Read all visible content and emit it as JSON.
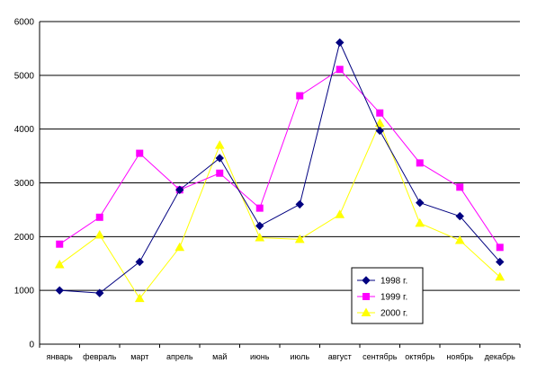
{
  "chart_data": {
    "type": "line",
    "title": "",
    "xlabel": "",
    "ylabel": "",
    "categories": [
      "январь",
      "февраль",
      "март",
      "апрель",
      "май",
      "июнь",
      "июль",
      "август",
      "сентябрь",
      "октябрь",
      "ноябрь",
      "декабрь"
    ],
    "ylim": [
      0,
      6000
    ],
    "yticks": [
      0,
      1000,
      2000,
      3000,
      4000,
      5000,
      6000
    ],
    "grid": "horizontal",
    "legend_position": "bottom-right",
    "series": [
      {
        "name": "1998 г.",
        "color": "#000080",
        "marker": "diamond",
        "values": [
          1000,
          950,
          1530,
          2870,
          3460,
          2200,
          2600,
          5610,
          3970,
          2630,
          2380,
          1530
        ]
      },
      {
        "name": "1999 г.",
        "color": "#ff00ff",
        "marker": "square",
        "values": [
          1860,
          2360,
          3550,
          2870,
          3180,
          2530,
          4620,
          5110,
          4300,
          3370,
          2920,
          1800
        ]
      },
      {
        "name": "2000 г.",
        "color": "#ffff00",
        "marker": "triangle",
        "values": [
          1480,
          2030,
          850,
          1800,
          3700,
          1980,
          1950,
          2410,
          4110,
          2250,
          1930,
          1250
        ]
      }
    ]
  }
}
